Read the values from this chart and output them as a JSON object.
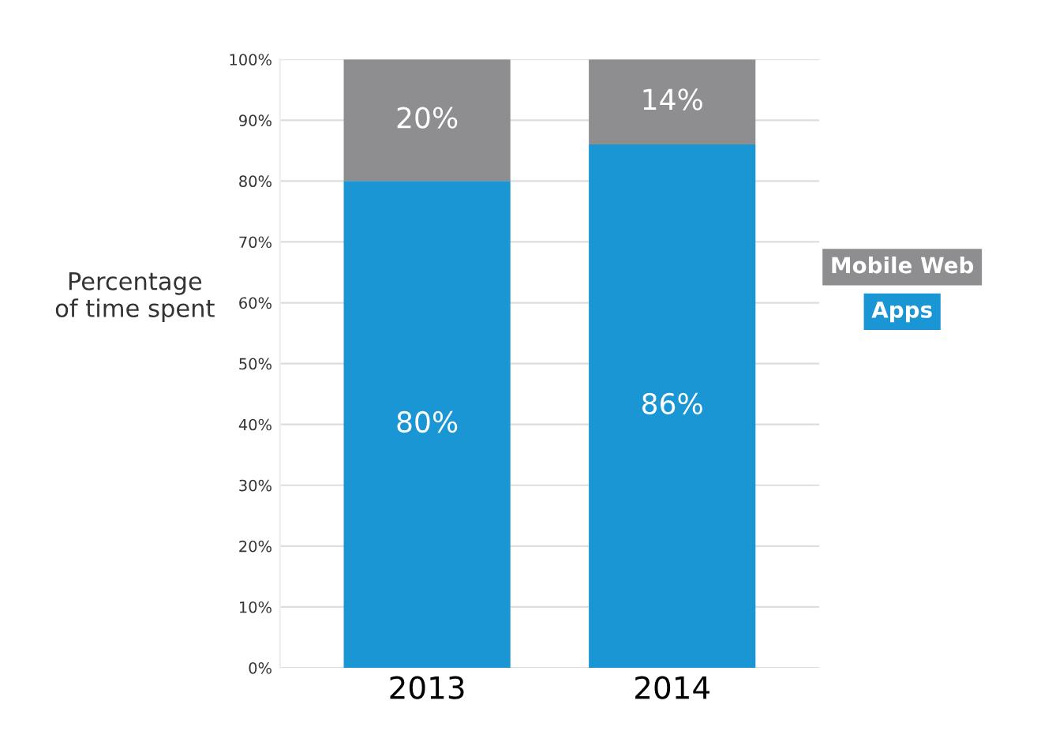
{
  "chart_data": {
    "type": "bar",
    "stacked": true,
    "ylabel": "Percentage\nof time spent",
    "categories": [
      "2013",
      "2014"
    ],
    "series": [
      {
        "name": "Apps",
        "color": "#1a96d4",
        "values": [
          80,
          86
        ],
        "value_labels": [
          "80%",
          "86%"
        ]
      },
      {
        "name": "Mobile Web",
        "color": "#8e8e90",
        "values": [
          20,
          14
        ],
        "value_labels": [
          "20%",
          "14%"
        ]
      }
    ],
    "ylim": [
      0,
      100
    ],
    "yticks": [
      {
        "value": 0,
        "label": "0%"
      },
      {
        "value": 10,
        "label": "10%"
      },
      {
        "value": 20,
        "label": "20%"
      },
      {
        "value": 30,
        "label": "30%"
      },
      {
        "value": 40,
        "label": "40%"
      },
      {
        "value": 50,
        "label": "50%"
      },
      {
        "value": 60,
        "label": "60%"
      },
      {
        "value": 70,
        "label": "70%"
      },
      {
        "value": 80,
        "label": "80%"
      },
      {
        "value": 90,
        "label": "90%"
      },
      {
        "value": 100,
        "label": "100%"
      }
    ],
    "grid": "y",
    "legend": "right"
  }
}
